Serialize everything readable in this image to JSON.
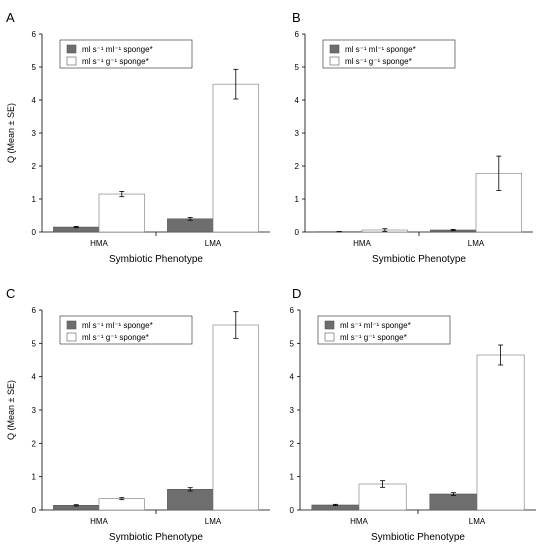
{
  "figure": {
    "ylabel": "Q (Mean ± SE)",
    "xlabel": "Symbiotic Phenotype",
    "colors": {
      "series1": "#6e6e6e",
      "series2": "#ffffff",
      "stroke": "#000000"
    }
  },
  "chart_data": [
    {
      "panel": "A",
      "type": "bar",
      "categories": [
        "HMA",
        "LMA"
      ],
      "ylim": [
        0,
        6
      ],
      "yticks": [
        0,
        1,
        2,
        3,
        4,
        5,
        6
      ],
      "xlabel": "Symbiotic Phenotype",
      "ylabel": "Q (Mean ± SE)",
      "legend_position": "top-left",
      "series": [
        {
          "name": "ml s⁻¹ ml⁻¹ sponge*",
          "values": [
            0.15,
            0.4
          ],
          "errors": [
            0.02,
            0.04
          ]
        },
        {
          "name": "ml s⁻¹ g⁻¹ sponge*",
          "values": [
            1.15,
            4.48
          ],
          "errors": [
            0.08,
            0.45
          ]
        }
      ]
    },
    {
      "panel": "B",
      "type": "bar",
      "categories": [
        "HMA",
        "LMA"
      ],
      "ylim": [
        0,
        6
      ],
      "yticks": [
        0,
        1,
        2,
        3,
        4,
        5,
        6
      ],
      "xlabel": "Symbiotic Phenotype",
      "ylabel": "",
      "legend_position": "top-left",
      "series": [
        {
          "name": "ml s⁻¹ ml⁻¹ sponge*",
          "values": [
            0.01,
            0.06
          ],
          "errors": [
            0.005,
            0.02
          ]
        },
        {
          "name": "ml s⁻¹ g⁻¹ sponge*",
          "values": [
            0.06,
            1.78
          ],
          "errors": [
            0.04,
            0.52
          ]
        }
      ]
    },
    {
      "panel": "C",
      "type": "bar",
      "categories": [
        "HMA",
        "LMA"
      ],
      "ylim": [
        0,
        6
      ],
      "yticks": [
        0,
        1,
        2,
        3,
        4,
        5,
        6
      ],
      "xlabel": "Symbiotic Phenotype",
      "ylabel": "Q (Mean ± SE)",
      "legend_position": "top-left",
      "series": [
        {
          "name": "ml s⁻¹ ml⁻¹ sponge*",
          "values": [
            0.14,
            0.62
          ],
          "errors": [
            0.02,
            0.05
          ]
        },
        {
          "name": "ml s⁻¹ g⁻¹ sponge*",
          "values": [
            0.34,
            5.55
          ],
          "errors": [
            0.03,
            0.4
          ]
        }
      ]
    },
    {
      "panel": "D",
      "type": "bar",
      "categories": [
        "HMA",
        "LMA"
      ],
      "ylim": [
        0,
        6
      ],
      "yticks": [
        0,
        1,
        2,
        3,
        4,
        5,
        6
      ],
      "xlabel": "Symbiotic Phenotype",
      "ylabel": "",
      "legend_position": "top-left",
      "series": [
        {
          "name": "ml s⁻¹ ml⁻¹ sponge*",
          "values": [
            0.15,
            0.48
          ],
          "errors": [
            0.02,
            0.04
          ]
        },
        {
          "name": "ml s⁻¹ g⁻¹ sponge*",
          "values": [
            0.78,
            4.65
          ],
          "errors": [
            0.1,
            0.3
          ]
        }
      ]
    }
  ]
}
